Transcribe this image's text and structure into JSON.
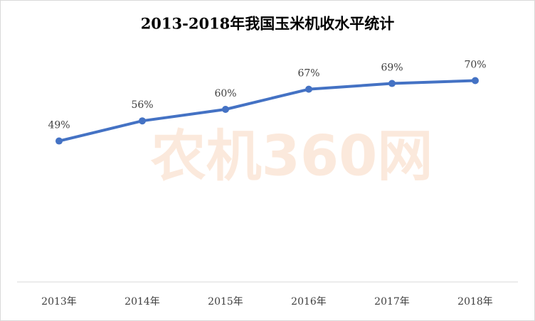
{
  "chart_data": {
    "type": "line",
    "title": "2013-2018年我国玉米机收水平统计",
    "watermark": "农机360网",
    "categories": [
      "2013年",
      "2014年",
      "2015年",
      "2016年",
      "2017年",
      "2018年"
    ],
    "series": [
      {
        "name": "玉米机收水平",
        "color": "#4472c4",
        "values": [
          49,
          56,
          60,
          67,
          69,
          70
        ],
        "value_labels": [
          "49%",
          "56%",
          "60%",
          "67%",
          "69%",
          "70%"
        ]
      }
    ],
    "ylim": [
      0,
      80
    ],
    "grid": false,
    "legend": false
  }
}
